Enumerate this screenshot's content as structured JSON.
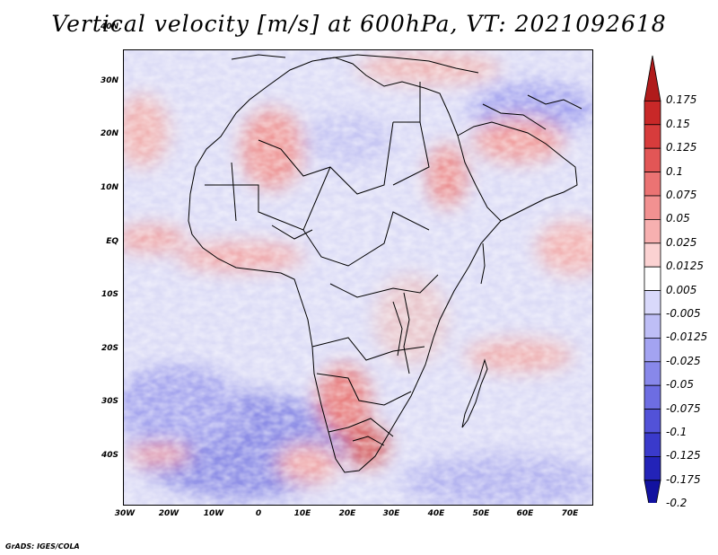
{
  "title": "Vertical velocity [m/s] at 600hPa, VT: 2021092618",
  "latitude_labels": [
    "40N",
    "30N",
    "20N",
    "10N",
    "EQ",
    "10S",
    "20S",
    "30S",
    "40S"
  ],
  "longitude_labels": [
    "30W",
    "20W",
    "10W",
    "0",
    "10E",
    "20E",
    "30E",
    "40E",
    "50E",
    "60E",
    "70E"
  ],
  "colorbar": {
    "levels": [
      "0.175",
      "0.15",
      "0.125",
      "0.1",
      "0.075",
      "0.05",
      "0.025",
      "0.0125",
      "0.005",
      "-0.005",
      "-0.0125",
      "-0.025",
      "-0.05",
      "-0.075",
      "-0.1",
      "-0.125",
      "-0.175",
      "-0.2"
    ],
    "colors": [
      "#b01b1b",
      "#c82828",
      "#d73c3c",
      "#e25656",
      "#eb7373",
      "#f29191",
      "#f7b0b0",
      "#fbd2d2",
      "#ffffff",
      "#d9d9fb",
      "#bebef6",
      "#a3a3f1",
      "#8888ea",
      "#6d6de2",
      "#5252d8",
      "#3a3acb",
      "#2323b8",
      "#1212a0"
    ]
  },
  "credit": "GrADS: IGES/COLA"
}
